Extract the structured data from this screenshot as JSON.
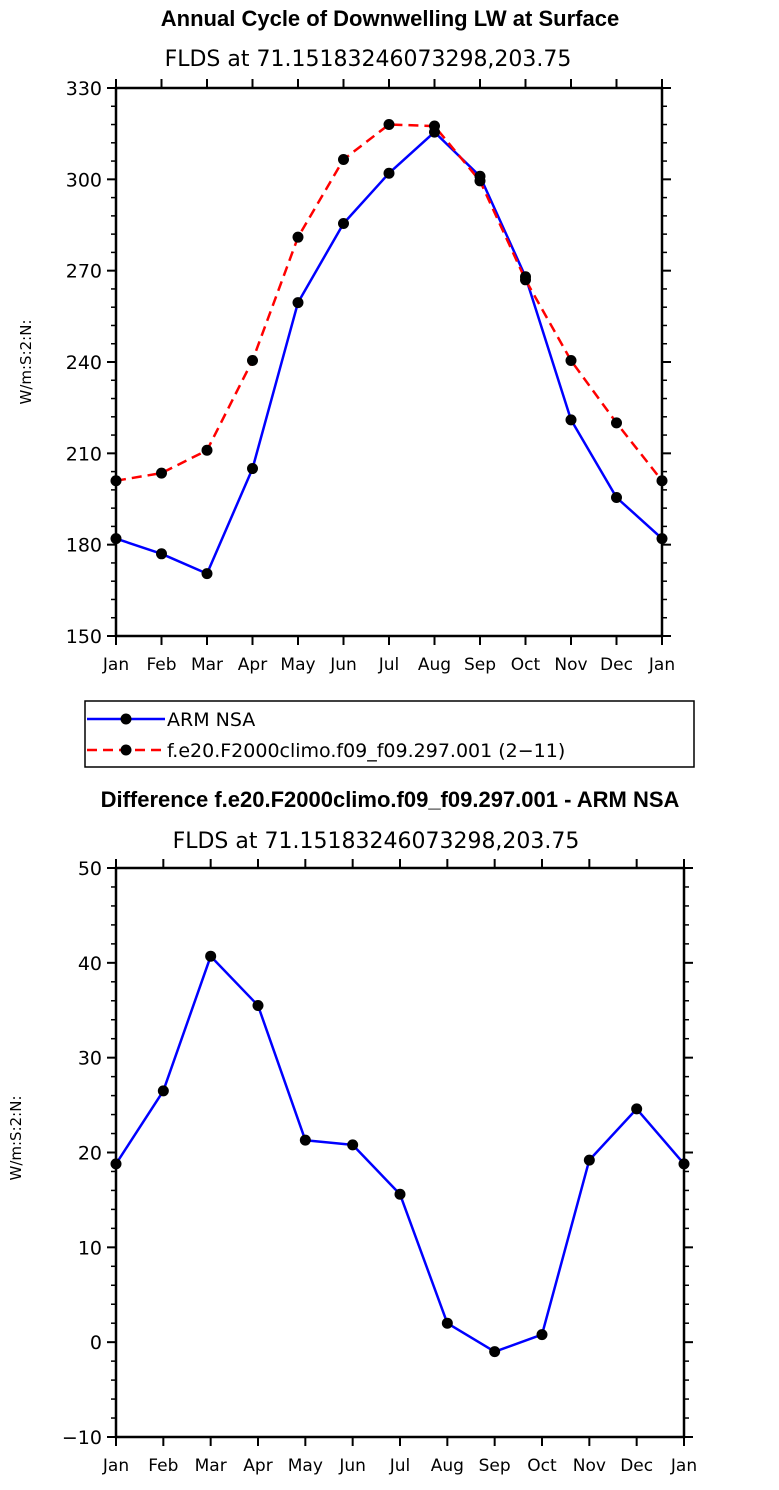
{
  "chart_data": [
    {
      "type": "line",
      "title": "Annual Cycle of Downwelling LW at Surface",
      "subtitle": "FLDS at 71.15183246073298,203.75",
      "ylabel": "W/m:S:2:N:",
      "xlabel": "",
      "ylim": [
        150,
        330
      ],
      "yticks": [
        150,
        180,
        210,
        240,
        270,
        300,
        330
      ],
      "categories": [
        "Jan",
        "Feb",
        "Mar",
        "Apr",
        "May",
        "Jun",
        "Jul",
        "Aug",
        "Sep",
        "Oct",
        "Nov",
        "Dec",
        "Jan"
      ],
      "grid": false,
      "legend": "below",
      "series": [
        {
          "name": "ARM NSA",
          "color": "#0000ff",
          "dash": "solid",
          "values": [
            182,
            177,
            170.5,
            205,
            259.5,
            285.5,
            302,
            315.5,
            301,
            268,
            221,
            195.5,
            182
          ]
        },
        {
          "name": "f.e20.F2000climo.f09_f09.297.001 (2−11)",
          "color": "#ff0000",
          "dash": "dashed",
          "values": [
            201,
            203.5,
            211,
            240.5,
            281,
            306.5,
            318,
            317.5,
            299.5,
            267,
            240.5,
            220,
            201
          ]
        }
      ]
    },
    {
      "type": "line",
      "title": "Difference f.e20.F2000climo.f09_f09.297.001 - ARM NSA",
      "subtitle": "FLDS at 71.15183246073298,203.75",
      "ylabel": "W/m:S:2:N:",
      "xlabel": "",
      "ylim": [
        -10,
        50
      ],
      "yticks": [
        -10,
        0,
        10,
        20,
        30,
        40,
        50
      ],
      "categories": [
        "Jan",
        "Feb",
        "Mar",
        "Apr",
        "May",
        "Jun",
        "Jul",
        "Aug",
        "Sep",
        "Oct",
        "Nov",
        "Dec",
        "Jan"
      ],
      "grid": false,
      "series": [
        {
          "color": "#0000ff",
          "dash": "solid",
          "values": [
            18.8,
            26.5,
            40.7,
            35.5,
            21.3,
            20.8,
            15.6,
            2.0,
            -1.0,
            0.8,
            19.2,
            24.6,
            18.8
          ]
        }
      ]
    }
  ]
}
